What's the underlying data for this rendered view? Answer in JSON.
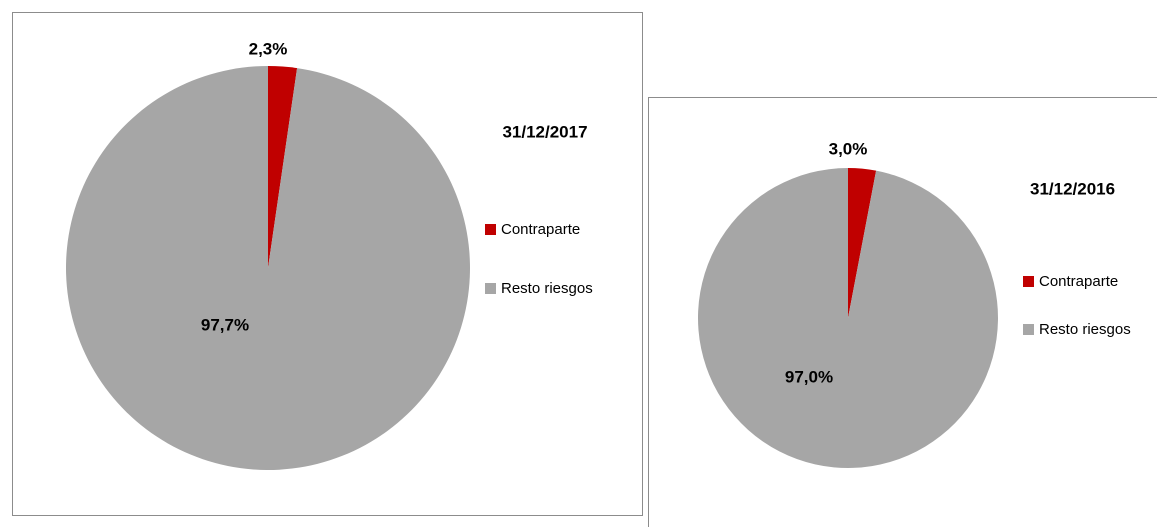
{
  "chart_data": [
    {
      "type": "pie",
      "title": "31/12/2017",
      "categories": [
        "Contraparte",
        "Resto riesgos"
      ],
      "values": [
        2.3,
        97.7
      ],
      "value_labels": [
        "2,3%",
        "97,7%"
      ],
      "colors": [
        "#c00000",
        "#a6a6a6"
      ],
      "legend": "right"
    },
    {
      "type": "pie",
      "title": "31/12/2016",
      "categories": [
        "Contraparte",
        "Resto riesgos"
      ],
      "values": [
        3.0,
        97.0
      ],
      "value_labels": [
        "3,0%",
        "97,0%"
      ],
      "colors": [
        "#c00000",
        "#a6a6a6"
      ],
      "legend": "right"
    }
  ]
}
